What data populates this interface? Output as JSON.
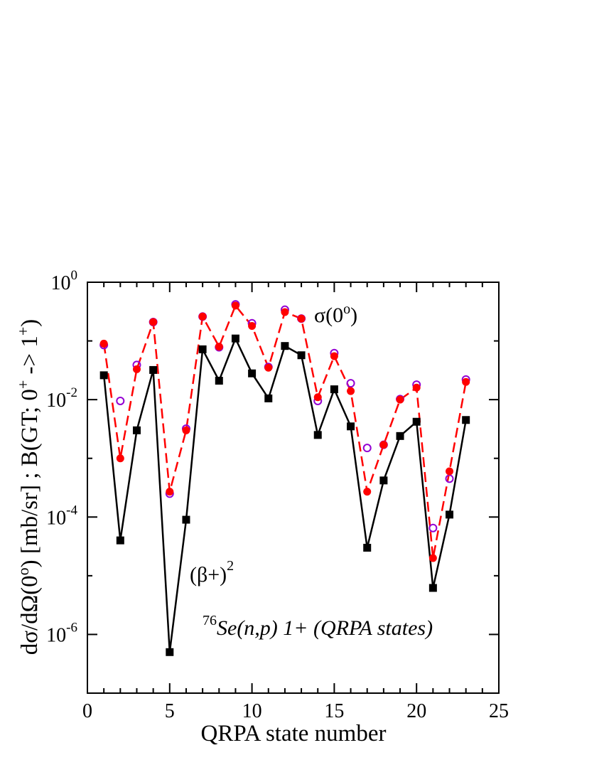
{
  "chart_data": {
    "type": "scatter",
    "xlabel": "QRPA state number",
    "ylabel": {
      "base": "dσ/dΩ(0",
      "sup1": "o",
      "mid": ") [mb/sr] ; B(GT; 0",
      "sup2": "+",
      "mid2": " -> 1",
      "sup3": "+",
      "end": ")"
    },
    "xlim": [
      0,
      25
    ],
    "ylim": [
      1e-07,
      1
    ],
    "yscale": "log",
    "xticks": [
      0,
      5,
      10,
      15,
      20,
      25
    ],
    "yticks": [
      {
        "base": "10",
        "exp": "0",
        "value": 1
      },
      {
        "base": "10",
        "exp": "-2",
        "value": 0.01
      },
      {
        "base": "10",
        "exp": "-4",
        "value": 0.0001
      },
      {
        "base": "10",
        "exp": "-6",
        "value": 1e-06
      }
    ],
    "annotations": [
      {
        "id": "sigma",
        "base": "σ(0",
        "sup": "o",
        "end": ")"
      },
      {
        "id": "beta",
        "base": "(β+)",
        "sup": "2",
        "end": ""
      },
      {
        "id": "reaction",
        "sup": "76",
        "text": "Se(n,p) 1+ (QRPA states)"
      }
    ],
    "x": [
      1,
      2,
      3,
      4,
      5,
      6,
      7,
      8,
      9,
      10,
      11,
      12,
      13,
      14,
      15,
      16,
      17,
      18,
      19,
      20,
      21,
      22,
      23
    ],
    "series": [
      {
        "id": "black-squares",
        "color": "#000000",
        "line": "solid",
        "marker": "square-filled",
        "values": [
          0.026,
          4e-05,
          0.003,
          0.032,
          5e-07,
          9e-05,
          0.072,
          0.021,
          0.11,
          0.028,
          0.0105,
          0.082,
          0.057,
          0.0025,
          0.015,
          0.0035,
          3e-05,
          0.00042,
          0.0024,
          0.0042,
          6.2e-06,
          0.00011,
          0.0045
        ]
      },
      {
        "id": "red-circles",
        "color": "#ff0000",
        "line": "dashed",
        "marker": "circle-filled",
        "values": [
          0.09,
          0.001,
          0.033,
          0.21,
          0.00027,
          0.003,
          0.26,
          0.08,
          0.4,
          0.18,
          0.035,
          0.31,
          0.24,
          0.011,
          0.055,
          0.014,
          0.00027,
          0.0017,
          0.01,
          0.016,
          2e-05,
          0.0006,
          0.02
        ]
      },
      {
        "id": "purple-open-circles",
        "color": "#9400d3",
        "line": "none",
        "marker": "circle-open",
        "values": [
          0.085,
          0.0095,
          0.039,
          0.21,
          0.00025,
          0.0032,
          0.26,
          0.078,
          0.42,
          0.2,
          0.036,
          0.34,
          0.24,
          0.0095,
          0.062,
          0.019,
          0.0015,
          0.0017,
          0.0102,
          0.018,
          6.5e-05,
          0.00045,
          0.022
        ]
      }
    ]
  }
}
